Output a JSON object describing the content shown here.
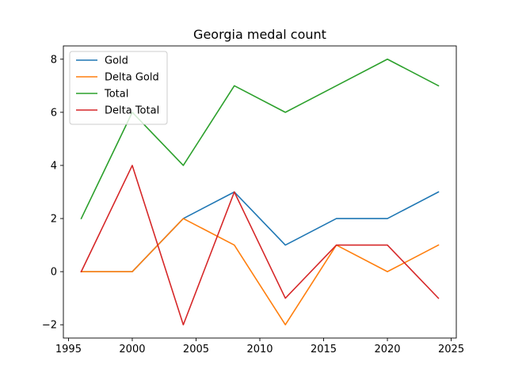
{
  "chart_data": {
    "type": "line",
    "title": "Georgia medal count",
    "xlabel": "",
    "ylabel": "",
    "x": [
      1996,
      2000,
      2004,
      2008,
      2012,
      2016,
      2020,
      2024
    ],
    "series": [
      {
        "name": "Gold",
        "color": "#1f77b4",
        "values": [
          0,
          0,
          2,
          3,
          1,
          2,
          2,
          3
        ]
      },
      {
        "name": "Delta Gold",
        "color": "#ff7f0e",
        "values": [
          0,
          0,
          2,
          1,
          -2,
          1,
          0,
          1
        ]
      },
      {
        "name": "Total",
        "color": "#2ca02c",
        "values": [
          2,
          6,
          4,
          7,
          6,
          7,
          8,
          7
        ]
      },
      {
        "name": "Delta Total",
        "color": "#d62728",
        "values": [
          0,
          4,
          -2,
          3,
          -1,
          1,
          1,
          -1
        ]
      }
    ],
    "xlim": [
      1994.6,
      2025.4
    ],
    "ylim": [
      -2.5,
      8.5
    ],
    "xticks": [
      1995,
      2000,
      2005,
      2010,
      2015,
      2020,
      2025
    ],
    "yticks": [
      -2,
      0,
      2,
      4,
      6,
      8
    ],
    "ytick_labels": [
      "−2",
      "0",
      "2",
      "4",
      "6",
      "8"
    ],
    "grid": false,
    "legend_position": "top-left"
  }
}
